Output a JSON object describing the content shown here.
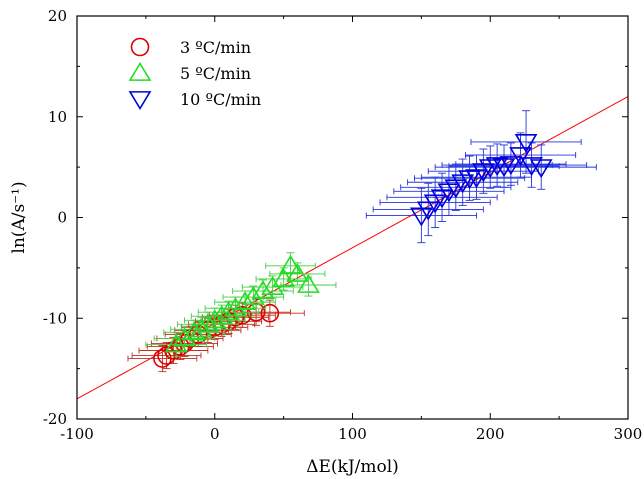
{
  "chart_data": {
    "type": "scatter",
    "title": "",
    "xlabel": "ΔE(kJ/mol)",
    "ylabel": "ln(A/s⁻¹)",
    "xlim": [
      -100,
      300
    ],
    "ylim": [
      -20,
      20
    ],
    "xticks": [
      "-100",
      "0",
      "100",
      "200",
      "300"
    ],
    "yticks": [
      "-20",
      "-10",
      "0",
      "10",
      "20"
    ],
    "grid": false,
    "legend_position": "top-left",
    "fit_line": {
      "x": [
        -100,
        300
      ],
      "y": [
        -18.0,
        12.0
      ],
      "color": "#ff0000"
    },
    "series": [
      {
        "name": "3 ºC/min",
        "marker": "circle",
        "color": "#e00000",
        "err_color": "#c03020",
        "x": [
          -38,
          -35,
          -30,
          -25,
          -22,
          -18,
          -12,
          -5,
          0,
          5,
          10,
          15,
          20,
          30,
          40
        ],
        "y": [
          -14.0,
          -13.7,
          -13.2,
          -12.8,
          -12.5,
          -12.0,
          -11.6,
          -11.2,
          -10.9,
          -10.6,
          -10.3,
          -9.9,
          -9.7,
          -9.4,
          -9.5
        ],
        "xerr": [
          25,
          25,
          25,
          24,
          24,
          24,
          24,
          24,
          24,
          24,
          24,
          24,
          24,
          25,
          25
        ],
        "yerr": [
          1.3,
          1.3,
          1.3,
          1.3,
          1.3,
          1.2,
          1.2,
          1.2,
          1.2,
          1.2,
          1.2,
          1.2,
          1.2,
          1.3,
          1.3
        ]
      },
      {
        "name": "5 ºC/min",
        "marker": "triangle-up",
        "color": "#22dd22",
        "err_color": "#44cc44",
        "x": [
          -28,
          -22,
          -15,
          -10,
          -5,
          0,
          5,
          10,
          15,
          22,
          28,
          35,
          42,
          50,
          55,
          60,
          68
        ],
        "y": [
          -12.6,
          -12.0,
          -11.4,
          -11.1,
          -10.6,
          -10.2,
          -9.8,
          -9.4,
          -9.0,
          -8.4,
          -7.9,
          -7.3,
          -6.9,
          -6.1,
          -4.8,
          -5.6,
          -6.7
        ],
        "xerr": [
          22,
          22,
          22,
          22,
          22,
          22,
          22,
          22,
          22,
          22,
          22,
          22,
          22,
          20,
          18,
          20,
          20
        ],
        "yerr": [
          1.2,
          1.2,
          1.2,
          1.2,
          1.2,
          1.2,
          1.1,
          1.1,
          1.1,
          1.1,
          1.1,
          1.1,
          1.1,
          1.1,
          1.3,
          1.1,
          1.1
        ]
      },
      {
        "name": "10 ºC/min",
        "marker": "triangle-down",
        "color": "#0000dd",
        "err_color": "#2233dd",
        "x": [
          150,
          155,
          160,
          165,
          170,
          175,
          180,
          185,
          190,
          195,
          200,
          205,
          210,
          215,
          222,
          226,
          230,
          237
        ],
        "y": [
          0.2,
          0.8,
          1.5,
          2.0,
          2.6,
          3.0,
          3.5,
          3.9,
          4.0,
          4.6,
          5.0,
          5.2,
          5.1,
          5.3,
          6.2,
          7.5,
          5.2,
          5.0
        ],
        "xerr": [
          40,
          40,
          40,
          40,
          40,
          40,
          40,
          40,
          40,
          40,
          40,
          40,
          40,
          40,
          40,
          40,
          40,
          40
        ],
        "yerr": [
          2.7,
          2.6,
          2.5,
          2.4,
          2.4,
          2.3,
          2.3,
          2.2,
          2.2,
          2.2,
          2.1,
          2.1,
          2.1,
          2.1,
          2.2,
          3.1,
          2.2,
          2.2
        ]
      }
    ]
  }
}
